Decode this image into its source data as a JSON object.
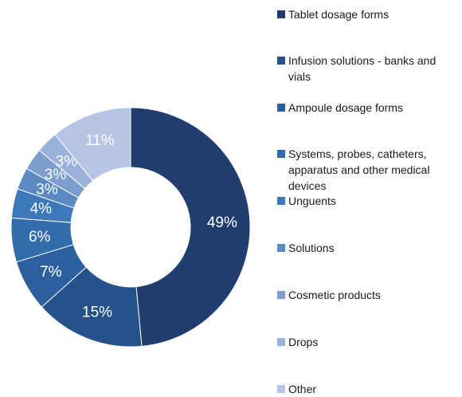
{
  "chart_data": {
    "type": "pie",
    "title": "",
    "donut": true,
    "legend_position": "right",
    "categories": [
      "Tablet dosage forms",
      "Infusion solutions - banks and vials",
      "Ampoule dosage forms",
      "Systems, probes, catheters, apparatus and other medical devices",
      "Unguents",
      "Solutions",
      "Cosmetic products",
      "Drops",
      "Other"
    ],
    "values": [
      49,
      15,
      7,
      6,
      4,
      3,
      3,
      3,
      11
    ],
    "labels": [
      "49%",
      "15%",
      "7%",
      "6%",
      "4%",
      "3%",
      "3%",
      "3%",
      "11%"
    ],
    "colors": [
      "#1f3d6e",
      "#26518a",
      "#2c5f9d",
      "#336cab",
      "#3d79b8",
      "#5b8ac3",
      "#7c9ecf",
      "#9ab1da",
      "#b7c5e4"
    ]
  }
}
